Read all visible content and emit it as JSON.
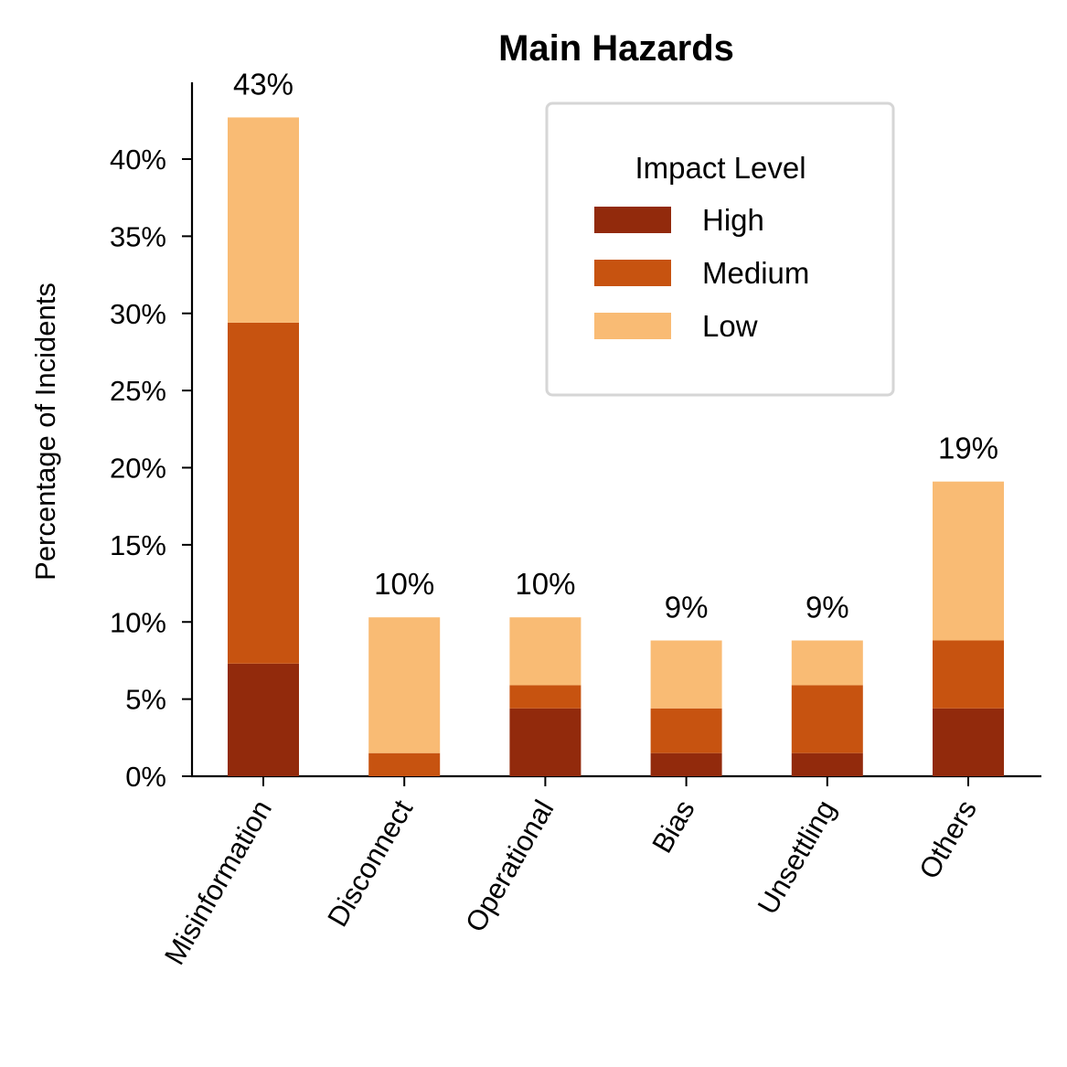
{
  "chart_data": {
    "type": "bar",
    "stacked": true,
    "title": "Main Hazards",
    "xlabel": "",
    "ylabel": "Percentage of Incidents",
    "ylim": [
      0,
      45
    ],
    "yticks": [
      0,
      5,
      10,
      15,
      20,
      25,
      30,
      35,
      40
    ],
    "ytick_labels": [
      "0%",
      "5%",
      "10%",
      "15%",
      "20%",
      "25%",
      "30%",
      "35%",
      "40%"
    ],
    "categories": [
      "Misinformation",
      "Disconnect",
      "Operational",
      "Bias",
      "Unsettling",
      "Others"
    ],
    "series": [
      {
        "name": "High",
        "color": "#922a0c",
        "values": [
          7.3,
          0,
          4.4,
          1.5,
          1.5,
          4.4
        ]
      },
      {
        "name": "Medium",
        "color": "#c75310",
        "values": [
          22.1,
          1.5,
          1.5,
          2.9,
          4.4,
          4.4
        ]
      },
      {
        "name": "Low",
        "color": "#f9bb74",
        "values": [
          13.3,
          8.8,
          4.4,
          4.4,
          2.9,
          10.3
        ]
      }
    ],
    "totals": [
      "43%",
      "10%",
      "10%",
      "9%",
      "9%",
      "19%"
    ],
    "legend": {
      "title": "Impact Level",
      "position": "top-right"
    },
    "grid": false
  }
}
